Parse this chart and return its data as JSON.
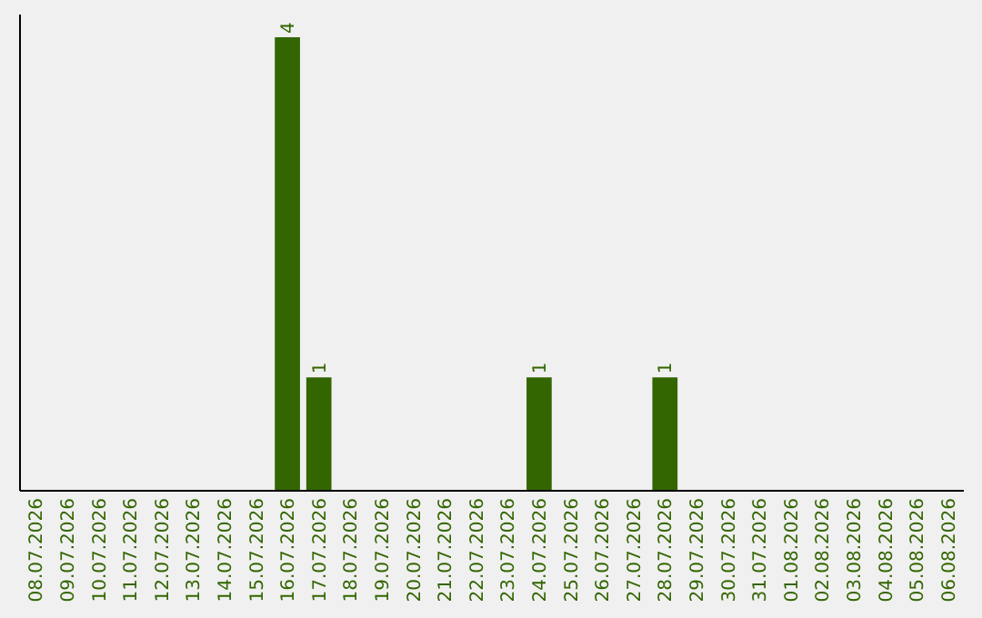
{
  "chart_data": {
    "type": "bar",
    "categories": [
      "08.07.2026",
      "09.07.2026",
      "10.07.2026",
      "11.07.2026",
      "12.07.2026",
      "13.07.2026",
      "14.07.2026",
      "15.07.2026",
      "16.07.2026",
      "17.07.2026",
      "18.07.2026",
      "19.07.2026",
      "20.07.2026",
      "21.07.2026",
      "22.07.2026",
      "23.07.2026",
      "24.07.2026",
      "25.07.2026",
      "26.07.2026",
      "27.07.2026",
      "28.07.2026",
      "29.07.2026",
      "30.07.2026",
      "31.07.2026",
      "01.08.2026",
      "02.08.2026",
      "03.08.2026",
      "04.08.2026",
      "05.08.2026",
      "06.08.2026"
    ],
    "values": [
      0,
      0,
      0,
      0,
      0,
      0,
      0,
      0,
      4,
      1,
      0,
      0,
      0,
      0,
      0,
      0,
      1,
      0,
      0,
      0,
      1,
      0,
      0,
      0,
      0,
      0,
      0,
      0,
      0,
      0
    ],
    "value_labels": [
      null,
      null,
      null,
      null,
      null,
      null,
      null,
      null,
      "4",
      "1",
      null,
      null,
      null,
      null,
      null,
      null,
      "1",
      null,
      null,
      null,
      "1",
      null,
      null,
      null,
      null,
      null,
      null,
      null,
      null,
      null
    ],
    "color": "#336600",
    "ylim": [
      0,
      4.2
    ],
    "tick_labels": "x"
  }
}
